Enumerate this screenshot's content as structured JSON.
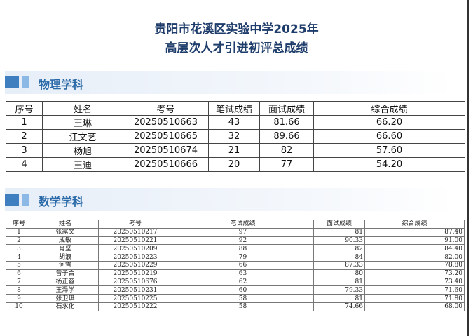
{
  "title": {
    "line1": "贵阳市花溪区实验中学2025年",
    "line2": "高层次人才引进初评总成绩"
  },
  "sections": [
    {
      "name": "物理学科",
      "headers": [
        "序号",
        "姓名",
        "考号",
        "笔试成绩",
        "面试成绩",
        "综合成绩"
      ],
      "rows": [
        [
          "1",
          "王琳",
          "20250510663",
          "43",
          "81.66",
          "66.20"
        ],
        [
          "2",
          "江文艺",
          "20250510665",
          "32",
          "89.66",
          "66.60"
        ],
        [
          "3",
          "杨旭",
          "20250510674",
          "21",
          "82",
          "57.60"
        ],
        [
          "4",
          "王迪",
          "20250510666",
          "20",
          "77",
          "54.20"
        ]
      ]
    },
    {
      "name": "数学学科",
      "headers": [
        "序号",
        "姓名",
        "考号",
        "笔试成绩",
        "面试成绩",
        "综合成绩"
      ],
      "rows": [
        [
          "1",
          "张露文",
          "20250510217",
          "97",
          "81",
          "87.40"
        ],
        [
          "2",
          "成敏",
          "20250510221",
          "92",
          "90.33",
          "91.00"
        ],
        [
          "3",
          "肖坚",
          "20250510209",
          "88",
          "82",
          "84.40"
        ],
        [
          "4",
          "胡浪",
          "20250510223",
          "79",
          "84",
          "82.00"
        ],
        [
          "5",
          "何雪",
          "20250510229",
          "66",
          "87.33",
          "78.80"
        ],
        [
          "6",
          "曾子合",
          "20250510219",
          "63",
          "80",
          "73.20"
        ],
        [
          "7",
          "杨正容",
          "20250510676",
          "62",
          "81",
          "73.40"
        ],
        [
          "8",
          "王泽学",
          "20250510231",
          "60",
          "79.33",
          "71.60"
        ],
        [
          "9",
          "张卫琪",
          "20250510225",
          "58",
          "81",
          "71.80"
        ],
        [
          "10",
          "石求化",
          "20250510222",
          "58",
          "74.66",
          "68.00"
        ]
      ]
    }
  ],
  "colors": {
    "title": "#1f3d6b",
    "section": "#2a6aa8",
    "accent_dark": "#3f7fc0",
    "accent_light": "#8cb8e6"
  }
}
